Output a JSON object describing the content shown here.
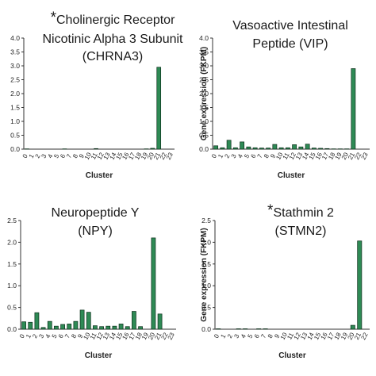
{
  "chart_data": [
    {
      "type": "bar",
      "title_star": "*",
      "title_lines": [
        "Cholinergic Receptor",
        "Nicotinic Alpha 3 Subunit",
        "(CHRNA3)"
      ],
      "xlabel": "Cluster",
      "ylabel": "",
      "ylim": [
        0,
        4.0
      ],
      "yticks": [
        "0.0",
        "0.5",
        "1.0",
        "1.5",
        "2.0",
        "2.5",
        "3.0",
        "3.5",
        "4.0"
      ],
      "categories": [
        "0",
        "1",
        "2",
        "3",
        "4",
        "5",
        "6",
        "7",
        "8",
        "9",
        "10",
        "11",
        "12",
        "13",
        "14",
        "15",
        "16",
        "17",
        "18",
        "19",
        "20",
        "21",
        "22",
        "23"
      ],
      "values": [
        0.01,
        0.0,
        0.0,
        0.0,
        0.0,
        0.0,
        0.01,
        0.0,
        0.0,
        0.0,
        0.0,
        0.02,
        0.0,
        0.0,
        0.0,
        0.0,
        0.0,
        0.0,
        0.0,
        0.01,
        0.03,
        2.95,
        0.0,
        0.0
      ]
    },
    {
      "type": "bar",
      "title_star": "",
      "title_lines": [
        "Vasoactive Intestinal",
        "Peptide (VIP)"
      ],
      "xlabel": "Cluster",
      "ylabel": "Gene expression (FKPM)",
      "ylim": [
        0,
        4.0
      ],
      "yticks": [
        "0.0",
        "0.5",
        "1.0",
        "1.5",
        "2.0",
        "2.5",
        "3.0",
        "3.5",
        "4.0"
      ],
      "categories": [
        "0",
        "1",
        "2",
        "3",
        "4",
        "5",
        "6",
        "7",
        "8",
        "9",
        "10",
        "11",
        "12",
        "13",
        "14",
        "15",
        "16",
        "17",
        "18",
        "19",
        "20",
        "21",
        "22",
        "23"
      ],
      "values": [
        0.12,
        0.05,
        0.32,
        0.05,
        0.26,
        0.08,
        0.05,
        0.04,
        0.04,
        0.17,
        0.05,
        0.05,
        0.16,
        0.08,
        0.18,
        0.04,
        0.03,
        0.02,
        0.01,
        0.01,
        0.01,
        2.9,
        0.0,
        0.0
      ]
    },
    {
      "type": "bar",
      "title_star": "",
      "title_lines": [
        "Neuropeptide Y",
        "(NPY)"
      ],
      "xlabel": "Cluster",
      "ylabel": "",
      "ylim": [
        0,
        2.5
      ],
      "yticks": [
        "0.0",
        "0.5",
        "1.0",
        "1.5",
        "2.0",
        "2.5"
      ],
      "categories": [
        "0",
        "1",
        "2",
        "3",
        "4",
        "5",
        "6",
        "7",
        "8",
        "9",
        "10",
        "11",
        "12",
        "13",
        "14",
        "15",
        "16",
        "17",
        "18",
        "19",
        "20",
        "21",
        "22",
        "23"
      ],
      "values": [
        0.17,
        0.16,
        0.38,
        0.04,
        0.18,
        0.07,
        0.11,
        0.12,
        0.18,
        0.44,
        0.39,
        0.08,
        0.06,
        0.07,
        0.07,
        0.12,
        0.06,
        0.41,
        0.06,
        0.0,
        2.1,
        0.35,
        0.0,
        0.0
      ]
    },
    {
      "type": "bar",
      "title_star": "*",
      "title_lines": [
        "Stathmin 2",
        "(STMN2)"
      ],
      "xlabel": "Cluster",
      "ylabel": "Gene expression (FKPM)",
      "ylim": [
        0,
        2.5
      ],
      "yticks": [
        "0.0",
        "0.5",
        "1.0",
        "1.5",
        "2.0",
        "2.5"
      ],
      "categories": [
        "0",
        "1",
        "2",
        "3",
        "4",
        "5",
        "6",
        "7",
        "8",
        "9",
        "10",
        "11",
        "12",
        "13",
        "14",
        "15",
        "16",
        "17",
        "18",
        "19",
        "20",
        "21",
        "22"
      ],
      "values": [
        0.01,
        0.0,
        0.0,
        0.01,
        0.01,
        0.0,
        0.01,
        0.01,
        0.0,
        0.0,
        0.0,
        0.0,
        0.0,
        0.0,
        0.0,
        0.0,
        0.0,
        0.0,
        0.0,
        0.0,
        0.09,
        2.03,
        0.0
      ]
    }
  ]
}
